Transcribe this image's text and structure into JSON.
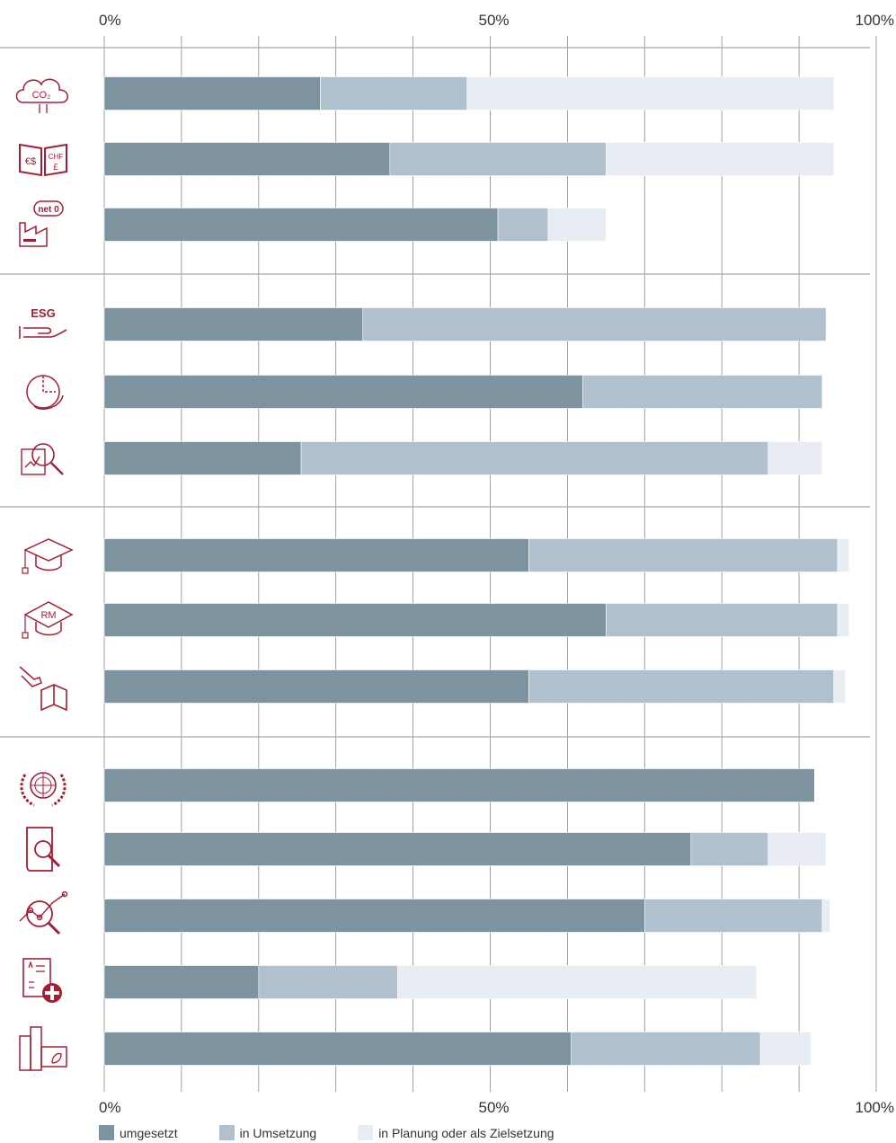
{
  "chart_data": {
    "type": "bar",
    "orientation": "horizontal",
    "stacked": true,
    "xlim": [
      0,
      100
    ],
    "x_ticks": [
      "0%",
      "50%",
      "100%"
    ],
    "grid": true,
    "legend_position": "bottom",
    "colors": {
      "umgesetzt": "#7d939f",
      "in_umsetzung": "#b0c0cc",
      "in_planung": "#e8edf3",
      "icon": "#a31f34",
      "grid": "#8a8a8a",
      "separator": "#9aaab3"
    },
    "groups": [
      {
        "rows": [
          {
            "icon": "co2-cloud-icon",
            "values": [
              28,
              19,
              47.5
            ]
          },
          {
            "icon": "currency-book-icon",
            "values": [
              37,
              28,
              29.5
            ]
          },
          {
            "icon": "net-zero-factory-icon",
            "values": [
              51,
              6.5,
              7.5
            ]
          }
        ]
      },
      {
        "rows": [
          {
            "icon": "esg-hand-icon",
            "values": [
              33.5,
              60,
              0
            ]
          },
          {
            "icon": "circular-chart-icon",
            "values": [
              62,
              31,
              0
            ]
          },
          {
            "icon": "magnifier-report-icon",
            "values": [
              25.5,
              60.5,
              7
            ]
          }
        ]
      },
      {
        "rows": [
          {
            "icon": "graduation-cap-icon",
            "values": [
              55,
              40,
              1.5
            ]
          },
          {
            "icon": "rm-graduation-cap-icon",
            "values": [
              65,
              30,
              1.5
            ]
          },
          {
            "icon": "hand-book-icon",
            "values": [
              55,
              39.5,
              1.5
            ]
          }
        ]
      },
      {
        "rows": [
          {
            "icon": "un-emblem-icon",
            "values": [
              92,
              0,
              0
            ]
          },
          {
            "icon": "book-search-icon",
            "values": [
              76,
              10,
              7.5
            ]
          },
          {
            "icon": "analytics-magnifier-icon",
            "values": [
              70,
              23,
              1
            ]
          },
          {
            "icon": "health-checklist-icon",
            "values": [
              20,
              18,
              46.5
            ]
          },
          {
            "icon": "green-building-icon",
            "values": [
              60.5,
              24.5,
              6.5
            ]
          }
        ]
      }
    ],
    "series": [
      {
        "name": "umgesetzt"
      },
      {
        "name": "in Umsetzung"
      },
      {
        "name": "in Planung oder als Zielsetzung"
      }
    ]
  }
}
